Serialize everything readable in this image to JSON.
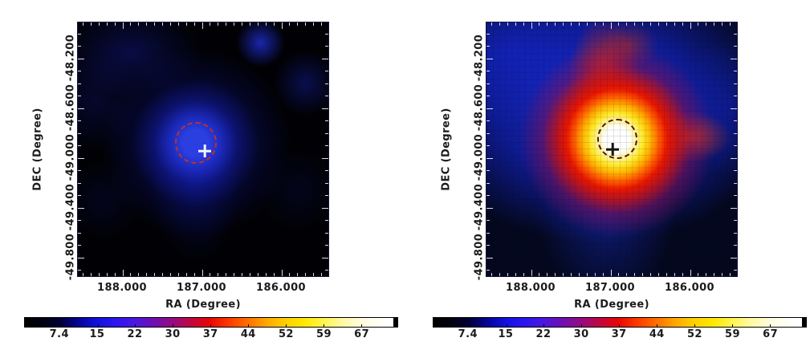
{
  "panels": [
    {
      "id": "left",
      "xlabel": "RA (Degree)",
      "ylabel": "DEC (Degree)",
      "x_ticks": [
        "188.000",
        "187.000",
        "186.000"
      ],
      "y_ticks": [
        "-48.200",
        "-48.600",
        "-49.000",
        "-49.400",
        "-49.800"
      ],
      "colorbar_labels": [
        "7.4",
        "15",
        "22",
        "30",
        "37",
        "44",
        "52",
        "59",
        "67"
      ],
      "marker": {
        "shape": "plus-cross",
        "color": "#ffffff"
      },
      "region_circle": {
        "style": "dashed",
        "color": "#bb3030"
      }
    },
    {
      "id": "right",
      "xlabel": "RA (Degree)",
      "ylabel": "DEC (Degree)",
      "x_ticks": [
        "188.000",
        "187.000",
        "186.000"
      ],
      "y_ticks": [
        "-48.200",
        "-48.600",
        "-49.000",
        "-49.400",
        "-49.800"
      ],
      "colorbar_labels": [
        "7.4",
        "15",
        "22",
        "30",
        "37",
        "44",
        "52",
        "59",
        "67"
      ],
      "marker": {
        "shape": "plus-cross",
        "color": "#141414"
      },
      "region_circle": {
        "style": "dashed",
        "color": "#5c1408"
      }
    }
  ],
  "chart_data": [
    {
      "type": "heatmap",
      "panel": "left",
      "xlabel": "RA (Degree)",
      "ylabel": "DEC (Degree)",
      "x_ticks": [
        188.0,
        187.0,
        186.0
      ],
      "y_ticks": [
        -48.2,
        -48.6,
        -49.0,
        -49.4,
        -49.8
      ],
      "x_range": [
        188.57,
        185.41
      ],
      "y_range": [
        -49.95,
        -47.95
      ],
      "x_axis_reversed": true,
      "colorbar": {
        "tick_labels": [
          7.4,
          15,
          22,
          30,
          37,
          44,
          52,
          59,
          67
        ],
        "range": [
          0,
          74
        ],
        "colormap": "black-blue-violet-red-orange-yellow-white",
        "colormap_stops": [
          "#000000",
          "#0000a8",
          "#2a16ee",
          "#930c84",
          "#e80505",
          "#fe7100",
          "#ffd000",
          "#fff34c",
          "#ffffff"
        ]
      },
      "appearance": "smooth faint diffuse emission, mostly dark",
      "peak": {
        "ra": 187.05,
        "dec": -48.9,
        "value_approx": 18
      },
      "features": [
        {
          "ra": 187.89,
          "dec": -48.16,
          "value_approx": 10,
          "note": "faint diffuse patch NW"
        },
        {
          "ra": 186.24,
          "dec": -48.07,
          "value_approx": 13,
          "note": "compact faint blob N"
        },
        {
          "ra": 185.7,
          "dec": -48.4,
          "value_approx": 9,
          "note": "faint blob NE"
        }
      ],
      "overlays": {
        "cross_marker": {
          "ra": 186.96,
          "dec": -48.95,
          "color": "#ffffff"
        },
        "dashed_circle": {
          "ra": 187.08,
          "dec": -48.88,
          "radius_deg": 0.17,
          "color": "#bb3030"
        }
      }
    },
    {
      "type": "heatmap",
      "panel": "right",
      "xlabel": "RA (Degree)",
      "ylabel": "DEC (Degree)",
      "x_ticks": [
        188.0,
        187.0,
        186.0
      ],
      "y_ticks": [
        -48.2,
        -48.6,
        -49.0,
        -49.4,
        -49.8
      ],
      "x_range": [
        188.57,
        185.41
      ],
      "y_range": [
        -49.95,
        -47.95
      ],
      "x_axis_reversed": true,
      "colorbar": {
        "tick_labels": [
          7.4,
          15,
          22,
          30,
          37,
          44,
          52,
          59,
          67
        ],
        "range": [
          0,
          74
        ],
        "colormap": "black-blue-violet-red-orange-yellow-white",
        "colormap_stops": [
          "#000000",
          "#0000a8",
          "#2a16ee",
          "#930c84",
          "#e80505",
          "#fe7100",
          "#ffd000",
          "#fff34c",
          "#ffffff"
        ]
      },
      "appearance": "bright extended source on blue field, pixelated counts map",
      "peak": {
        "ra": 186.92,
        "dec": -48.87,
        "value_approx": 70
      },
      "features": [
        {
          "ra": 187.0,
          "dec": -48.3,
          "value_approx": 38,
          "note": "red ridge extending north of source"
        },
        {
          "ra": 186.2,
          "dec": -48.85,
          "value_approx": 37,
          "note": "red spur east of source"
        },
        {
          "ra": 188.2,
          "dec": -48.2,
          "value_approx": 18,
          "note": "broad blue field over NW quadrant"
        }
      ],
      "overlays": {
        "cross_marker": {
          "ra": 186.97,
          "dec": -48.93,
          "color": "#141414"
        },
        "dashed_circle": {
          "ra": 186.91,
          "dec": -48.85,
          "radius_deg": 0.16,
          "color": "#5c1408"
        }
      }
    }
  ]
}
